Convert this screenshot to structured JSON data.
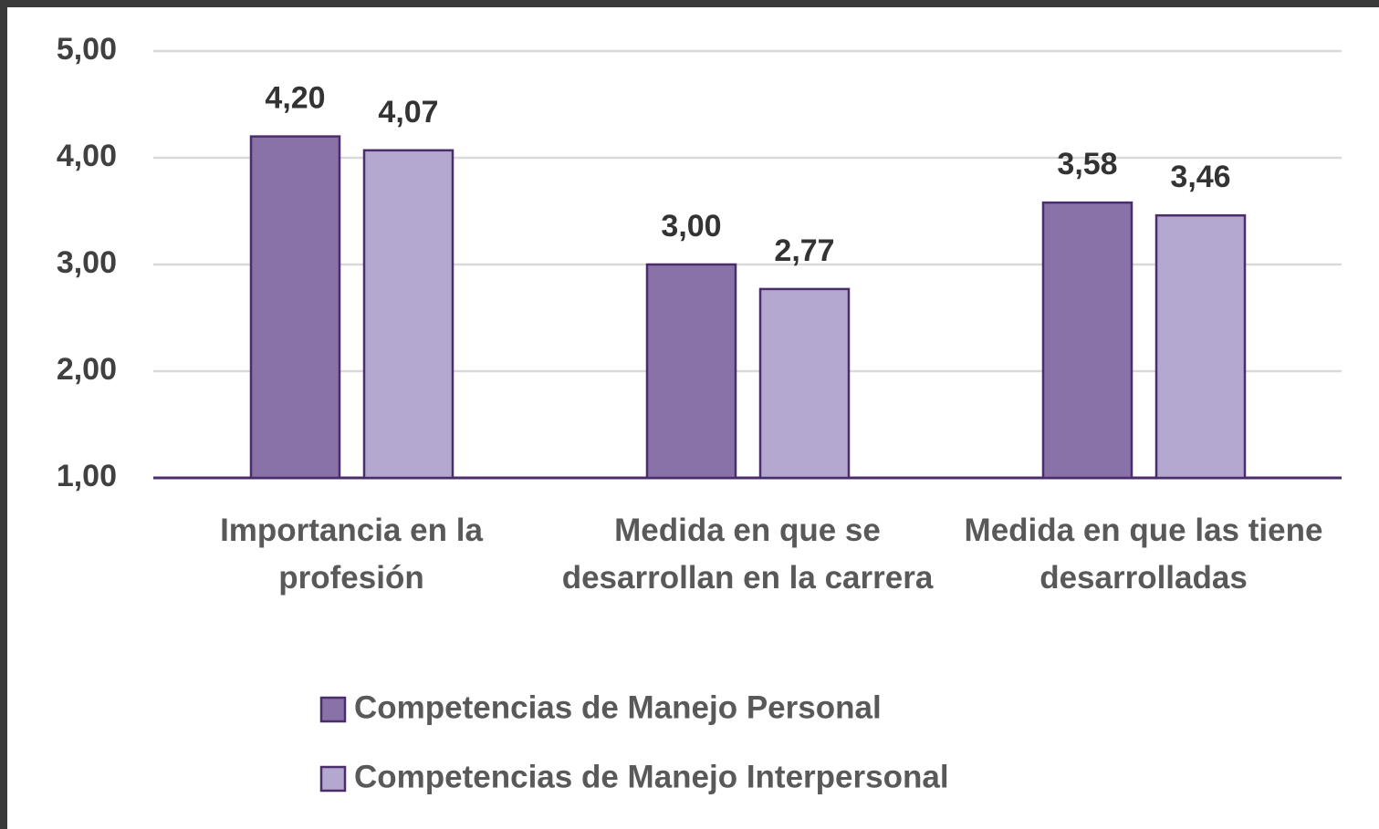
{
  "chart_data": {
    "type": "bar",
    "categories": [
      "Importancia en la profesión",
      "Medida en que se desarrollan en la carrera",
      "Medida en que las tiene desarrolladas"
    ],
    "series": [
      {
        "name": "Competencias de Manejo Personal",
        "color": "#8872a8",
        "values": [
          4.2,
          3.0,
          3.58
        ],
        "value_labels": [
          "4,20",
          "3,00",
          "3,58"
        ]
      },
      {
        "name": "Competencias de Manejo Interpersonal",
        "color": "#b4a7d0",
        "values": [
          4.07,
          2.77,
          3.46
        ],
        "value_labels": [
          "4,07",
          "2,77",
          "3,46"
        ]
      }
    ],
    "ylim": [
      1,
      5
    ],
    "yticks": [
      {
        "value": 1,
        "label": "1,00"
      },
      {
        "value": 2,
        "label": "2,00"
      },
      {
        "value": 3,
        "label": "3,00"
      },
      {
        "value": 4,
        "label": "4,00"
      },
      {
        "value": 5,
        "label": "5,00"
      }
    ],
    "grid": true,
    "legend": "bottom"
  }
}
